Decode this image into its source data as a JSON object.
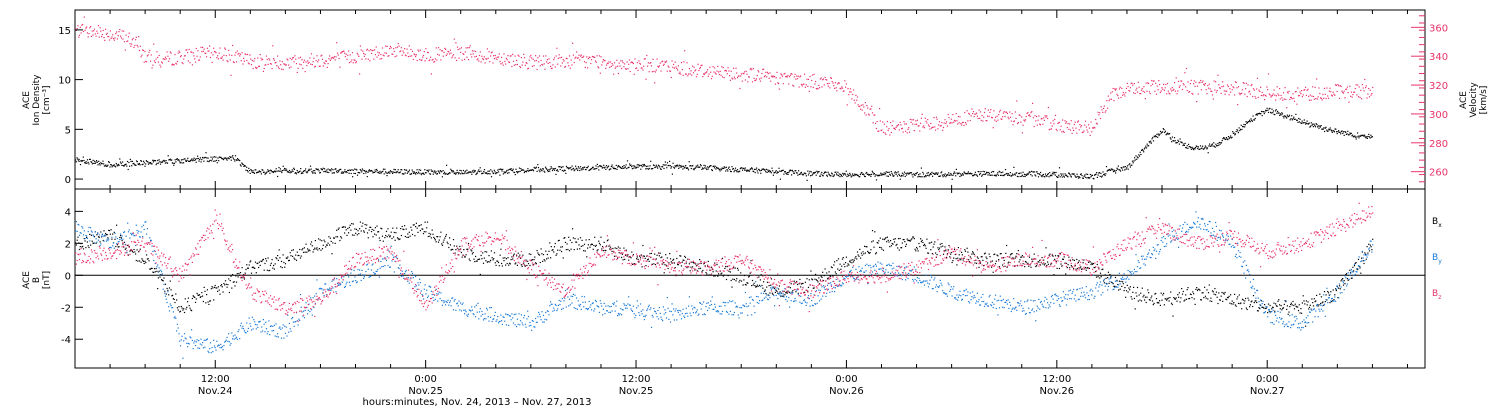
{
  "colors": {
    "density": "#000000",
    "velocity": "#e8336a",
    "bx": "#000000",
    "by": "#1a7ad6",
    "bz": "#e8336a",
    "axis": "#000000"
  },
  "xlabel": "hours:minutes, Nov. 24, 2013 – Nov. 27, 2013",
  "x_ticks": [
    {
      "x": 12,
      "time": "12:00",
      "day": "Nov.24"
    },
    {
      "x": 24,
      "time": "0:00",
      "day": "Nov.25"
    },
    {
      "x": 36,
      "time": "12:00",
      "day": "Nov.25"
    },
    {
      "x": 48,
      "time": "0:00",
      "day": "Nov.26"
    },
    {
      "x": 60,
      "time": "12:00",
      "day": "Nov.26"
    },
    {
      "x": 72,
      "time": "0:00",
      "day": "Nov.27"
    }
  ],
  "chart_data": [
    {
      "type": "scatter",
      "panel": "top",
      "xlabel": "hours:minutes, Nov. 24, 2013 – Nov. 27, 2013",
      "x_unit": "hours since 0:00 Nov. 24, 2013",
      "xlim": [
        4,
        81
      ],
      "ylabel_left": [
        "ACE",
        "Ion Density",
        "[cm⁻³]"
      ],
      "ylim_left": [
        -1,
        17
      ],
      "yticks_left": [
        0,
        5,
        10,
        15
      ],
      "ylabel_right": [
        "ACE",
        "Velocity",
        "[km/s]"
      ],
      "ylim_right": [
        248,
        372
      ],
      "yticks_right": [
        260,
        280,
        300,
        320,
        340,
        360
      ],
      "series": [
        {
          "axis": "left",
          "color": "#000000",
          "x": [
            4,
            6,
            8,
            10,
            12,
            13,
            14,
            18,
            22,
            26,
            30,
            34,
            36,
            40,
            44,
            46,
            48,
            50,
            52,
            56,
            60,
            62,
            63,
            64,
            65,
            66,
            67,
            68,
            69,
            70,
            71,
            72,
            74,
            76,
            78
          ],
          "y": [
            2.0,
            1.5,
            1.7,
            1.9,
            2.1,
            2.2,
            0.8,
            0.9,
            0.8,
            0.7,
            1.0,
            1.2,
            1.3,
            1.2,
            0.8,
            0.6,
            0.5,
            0.6,
            0.5,
            0.6,
            0.5,
            0.3,
            0.8,
            1.2,
            3.2,
            5.0,
            3.6,
            3.1,
            3.5,
            4.5,
            6.0,
            7.0,
            5.8,
            4.8,
            4.2
          ]
        },
        {
          "axis": "right",
          "color": "#e8336a",
          "x": [
            4,
            5,
            6,
            7,
            8,
            9,
            10,
            12,
            14,
            16,
            18,
            20,
            22,
            24,
            26,
            28,
            30,
            32,
            34,
            36,
            38,
            40,
            42,
            44,
            46,
            47,
            48,
            50,
            52,
            54,
            56,
            58,
            60,
            62,
            63,
            64,
            66,
            68,
            70,
            72,
            74,
            76,
            78
          ],
          "y": [
            358,
            357,
            356,
            353,
            340,
            338,
            340,
            343,
            337,
            336,
            338,
            340,
            345,
            341,
            342,
            340,
            336,
            337,
            337,
            334,
            333,
            330,
            328,
            326,
            323,
            322,
            318,
            290,
            292,
            296,
            300,
            297,
            293,
            290,
            312,
            318,
            319,
            319,
            318,
            315,
            314,
            316,
            316
          ]
        }
      ]
    },
    {
      "type": "scatter",
      "panel": "bottom",
      "xlabel": "hours:minutes, Nov. 24, 2013 – Nov. 27, 2013",
      "x_unit": "hours since 0:00 Nov. 24, 2013",
      "xlim": [
        4,
        81
      ],
      "ylabel_left": [
        "ACE",
        "B",
        "[nT]"
      ],
      "ylim": [
        -5.8,
        5.4
      ],
      "yticks": [
        -4,
        -2,
        0,
        2,
        4
      ],
      "zero_line": true,
      "legend": [
        "Bx",
        "By",
        "Bz"
      ],
      "legend_position": "right",
      "series": [
        {
          "name": "Bx",
          "color": "#000000",
          "x": [
            4,
            6,
            8,
            10,
            12,
            14,
            16,
            18,
            20,
            22,
            24,
            26,
            28,
            30,
            32,
            34,
            36,
            38,
            40,
            42,
            44,
            46,
            48,
            50,
            52,
            54,
            56,
            58,
            60,
            62,
            64,
            66,
            68,
            70,
            72,
            74,
            76,
            78
          ],
          "y": [
            2.0,
            2.5,
            1.0,
            -2.0,
            -1.0,
            0.5,
            1.0,
            2.0,
            3.0,
            2.5,
            3.0,
            1.5,
            1.0,
            1.0,
            2.0,
            2.0,
            1.0,
            1.0,
            0.5,
            0.0,
            -1.0,
            -0.5,
            1.0,
            2.0,
            2.0,
            1.5,
            1.0,
            1.0,
            1.0,
            0.5,
            -1.0,
            -1.5,
            -1.0,
            -1.5,
            -2.0,
            -2.0,
            -1.0,
            2.0
          ]
        },
        {
          "name": "By",
          "color": "#1a7ad6",
          "x": [
            4,
            6,
            8,
            10,
            12,
            14,
            16,
            18,
            20,
            22,
            24,
            26,
            28,
            30,
            32,
            34,
            36,
            38,
            40,
            42,
            44,
            46,
            48,
            50,
            52,
            54,
            56,
            58,
            60,
            62,
            64,
            66,
            68,
            70,
            72,
            74,
            76,
            78
          ],
          "y": [
            3.0,
            2.0,
            3.0,
            -4.0,
            -4.5,
            -3.0,
            -3.5,
            -1.0,
            0.0,
            1.0,
            -1.0,
            -2.0,
            -2.5,
            -3.0,
            -1.5,
            -2.0,
            -2.0,
            -2.5,
            -2.0,
            -2.0,
            -1.0,
            -1.5,
            0.0,
            0.5,
            0.0,
            -1.0,
            -1.5,
            -2.0,
            -1.5,
            -1.0,
            0.0,
            2.0,
            3.5,
            2.0,
            -2.5,
            -3.0,
            -1.0,
            2.0
          ]
        },
        {
          "name": "Bz",
          "color": "#e8336a",
          "x": [
            4,
            6,
            8,
            10,
            12,
            14,
            16,
            18,
            20,
            22,
            24,
            26,
            28,
            30,
            32,
            34,
            36,
            38,
            40,
            42,
            44,
            46,
            48,
            50,
            52,
            54,
            56,
            58,
            60,
            62,
            64,
            66,
            68,
            70,
            72,
            74,
            76,
            78
          ],
          "y": [
            1.0,
            1.5,
            2.0,
            0.0,
            3.5,
            -1.0,
            -2.0,
            -1.5,
            1.0,
            1.5,
            -2.0,
            2.0,
            2.5,
            0.5,
            -1.0,
            1.5,
            1.0,
            0.5,
            0.5,
            1.0,
            -0.5,
            -1.0,
            0.0,
            0.0,
            0.5,
            1.5,
            0.5,
            1.0,
            1.0,
            0.5,
            2.0,
            3.0,
            2.0,
            2.5,
            1.5,
            2.0,
            3.0,
            4.0
          ]
        }
      ]
    }
  ]
}
